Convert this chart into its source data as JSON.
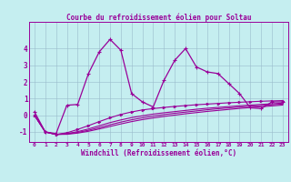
{
  "title": "Courbe du refroidissement éolien pour Soltau",
  "xlabel": "Windchill (Refroidissement éolien,°C)",
  "xlim": [
    -0.5,
    23.5
  ],
  "ylim": [
    -1.6,
    5.6
  ],
  "yticks": [
    -1,
    0,
    1,
    2,
    3,
    4
  ],
  "xticks": [
    0,
    1,
    2,
    3,
    4,
    5,
    6,
    7,
    8,
    9,
    10,
    11,
    12,
    13,
    14,
    15,
    16,
    17,
    18,
    19,
    20,
    21,
    22,
    23
  ],
  "line_color": "#990099",
  "bg_color": "#C5EEF0",
  "grid_color": "#99BBCC",
  "line1_y": [
    0.2,
    -1.0,
    -1.1,
    0.6,
    0.65,
    2.5,
    3.8,
    4.55,
    3.9,
    1.3,
    0.8,
    0.5,
    2.1,
    3.3,
    4.0,
    2.9,
    2.6,
    2.5,
    1.9,
    1.3,
    0.45,
    0.4,
    0.8,
    0.8
  ],
  "line2_y": [
    0.0,
    -1.0,
    -1.15,
    -1.05,
    -0.85,
    -0.62,
    -0.38,
    -0.15,
    0.05,
    0.2,
    0.32,
    0.4,
    0.47,
    0.53,
    0.58,
    0.63,
    0.67,
    0.71,
    0.75,
    0.78,
    0.81,
    0.84,
    0.86,
    0.88
  ],
  "line3_y": [
    0.0,
    -1.0,
    -1.15,
    -1.1,
    -0.98,
    -0.82,
    -0.63,
    -0.44,
    -0.28,
    -0.14,
    -0.03,
    0.07,
    0.15,
    0.22,
    0.29,
    0.36,
    0.42,
    0.47,
    0.52,
    0.57,
    0.61,
    0.65,
    0.69,
    0.73
  ],
  "line4_y": [
    0.0,
    -1.0,
    -1.15,
    -1.12,
    -1.03,
    -0.9,
    -0.74,
    -0.57,
    -0.41,
    -0.27,
    -0.15,
    -0.05,
    0.04,
    0.12,
    0.19,
    0.26,
    0.33,
    0.39,
    0.44,
    0.49,
    0.54,
    0.58,
    0.63,
    0.67
  ],
  "line5_y": [
    0.0,
    -1.0,
    -1.15,
    -1.14,
    -1.07,
    -0.96,
    -0.82,
    -0.67,
    -0.52,
    -0.38,
    -0.26,
    -0.16,
    -0.07,
    0.01,
    0.09,
    0.16,
    0.23,
    0.29,
    0.35,
    0.41,
    0.46,
    0.51,
    0.56,
    0.61
  ]
}
